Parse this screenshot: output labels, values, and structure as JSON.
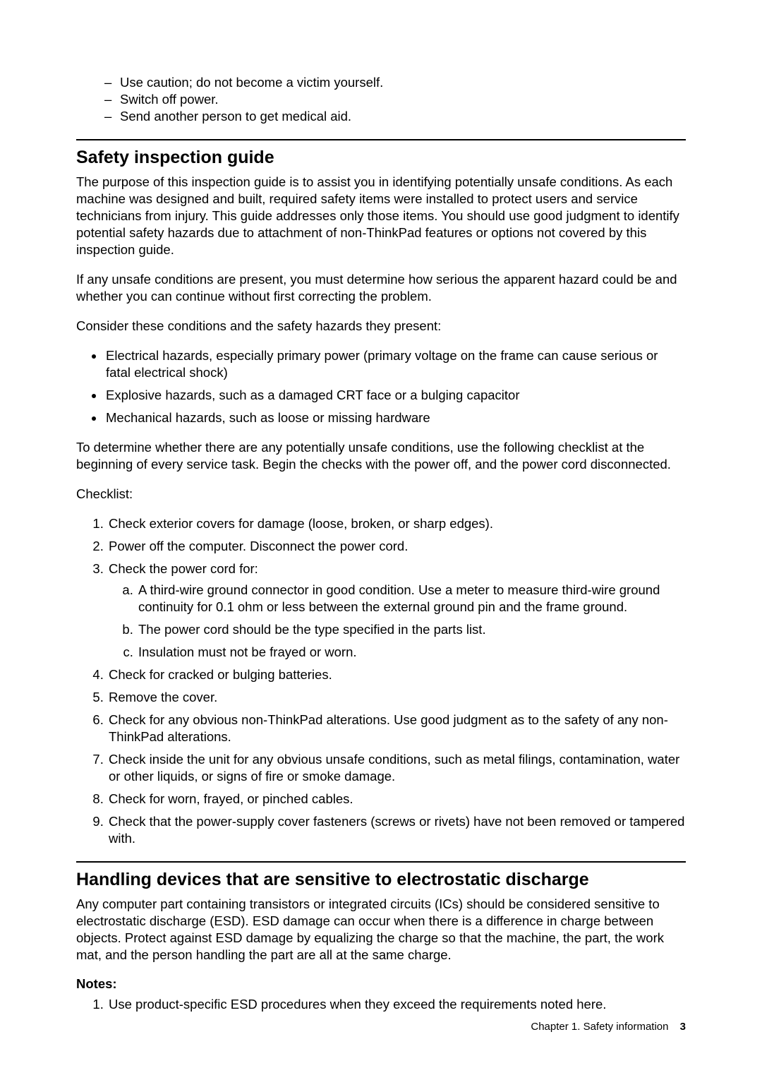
{
  "top_list": {
    "items": [
      "Use caution; do not become a victim yourself.",
      "Switch off power.",
      "Send another person to get medical aid."
    ]
  },
  "section1": {
    "heading": "Safety inspection guide",
    "para1": "The purpose of this inspection guide is to assist you in identifying potentially unsafe conditions. As each machine was designed and built, required safety items were installed to protect users and service technicians from injury. This guide addresses only those items. You should use good judgment to identify potential safety hazards due to attachment of non-ThinkPad features or options not covered by this inspection guide.",
    "para2": "If any unsafe conditions are present, you must determine how serious the apparent hazard could be and whether you can continue without first correcting the problem.",
    "para3": "Consider these conditions and the safety hazards they present:",
    "hazards": [
      "Electrical hazards, especially primary power (primary voltage on the frame can cause serious or fatal electrical shock)",
      "Explosive hazards, such as a damaged CRT face or a bulging capacitor",
      "Mechanical hazards, such as loose or missing hardware"
    ],
    "para4": "To determine whether there are any potentially unsafe conditions, use the following checklist at the beginning of every service task. Begin the checks with the power off, and the power cord disconnected.",
    "para5": "Checklist:",
    "checklist": {
      "item1": "Check exterior covers for damage (loose, broken, or sharp edges).",
      "item2": "Power off the computer. Disconnect the power cord.",
      "item3": "Check the power cord for:",
      "item3_sub": [
        "A third-wire ground connector in good condition. Use a meter to measure third-wire ground continuity for 0.1 ohm or less between the external ground pin and the frame ground.",
        "The power cord should be the type specified in the parts list.",
        "Insulation must not be frayed or worn."
      ],
      "item4": "Check for cracked or bulging batteries.",
      "item5": "Remove the cover.",
      "item6": "Check for any obvious non-ThinkPad alterations. Use good judgment as to the safety of any non-ThinkPad alterations.",
      "item7": "Check inside the unit for any obvious unsafe conditions, such as metal filings, contamination, water or other liquids, or signs of fire or smoke damage.",
      "item8": "Check for worn, frayed, or pinched cables.",
      "item9": "Check that the power-supply cover fasteners (screws or rivets) have not been removed or tampered with."
    }
  },
  "section2": {
    "heading": "Handling devices that are sensitive to electrostatic discharge",
    "para1": "Any computer part containing transistors or integrated circuits (ICs) should be considered sensitive to electrostatic discharge (ESD). ESD damage can occur when there is a difference in charge between objects. Protect against ESD damage by equalizing the charge so that the machine, the part, the work mat, and the person handling the part are all at the same charge.",
    "notes_label": "Notes:",
    "notes": [
      "Use product-specific ESD procedures when they exceed the requirements noted here."
    ]
  },
  "footer": {
    "chapter": "Chapter 1. Safety information",
    "page_number": "3"
  }
}
